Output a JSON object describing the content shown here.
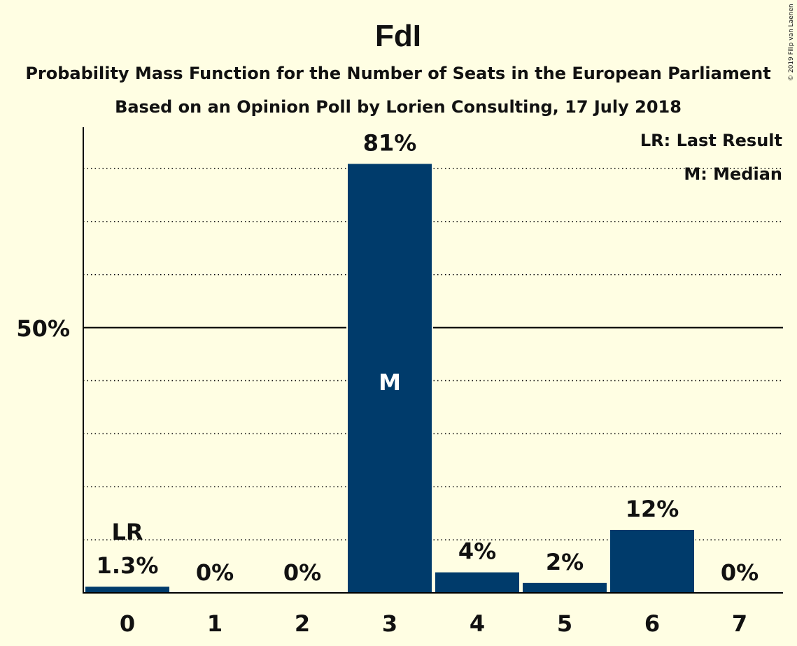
{
  "chart_data": {
    "type": "bar",
    "title": "FdI",
    "subtitle": "Probability Mass Function for the Number of Seats in the European Parliament",
    "subtitle2": "Based on an Opinion Poll by Lorien Consulting, 17 July 2018",
    "categories": [
      "0",
      "1",
      "2",
      "3",
      "4",
      "5",
      "6",
      "7"
    ],
    "values": [
      1.3,
      0,
      0,
      81,
      4,
      2,
      12,
      0
    ],
    "value_labels": [
      "1.3%",
      "0%",
      "0%",
      "81%",
      "4%",
      "2%",
      "12%",
      "0%"
    ],
    "y_tick_label": "50%",
    "y_tick_value": 50,
    "ylim": [
      0,
      88
    ],
    "grid": "dotted every 10%",
    "last_result": {
      "category": "0",
      "label": "LR"
    },
    "median": {
      "category": "3",
      "label": "M"
    },
    "legend": {
      "position": "top-right",
      "entries": [
        "LR: Last Result",
        "M: Median"
      ]
    },
    "bar_color": "#003B6B",
    "background_color": "#FFFEE3"
  },
  "copyright": "© 2019 Filip van Laenen"
}
